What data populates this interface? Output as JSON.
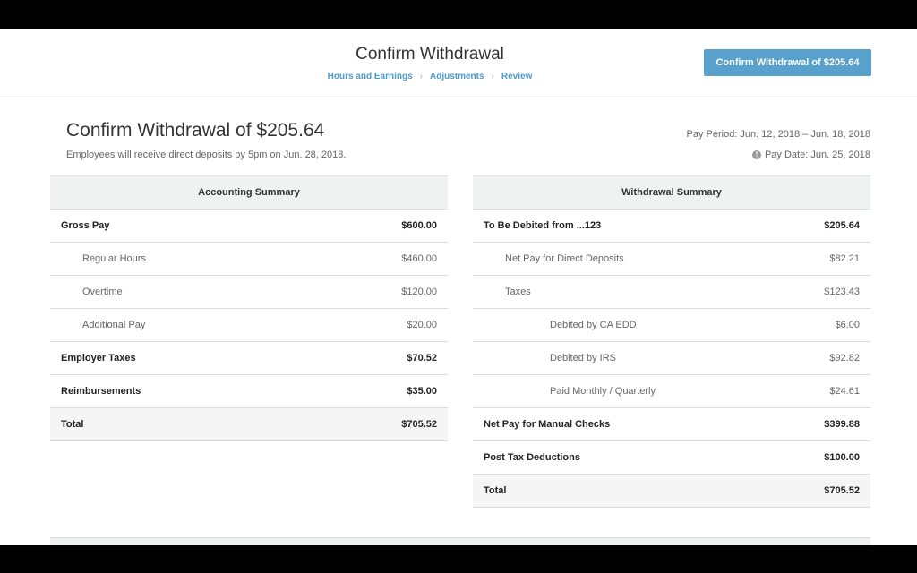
{
  "header": {
    "title": "Confirm Withdrawal",
    "breadcrumbs": [
      "Hours and Earnings",
      "Adjustments",
      "Review"
    ],
    "confirm_button": "Confirm Withdrawal of $205.64"
  },
  "main": {
    "title": "Confirm Withdrawal of $205.64",
    "subtitle": "Employees will receive direct deposits by 5pm on Jun. 28, 2018.",
    "pay_period": "Pay Period: Jun. 12, 2018 – Jun. 18, 2018",
    "pay_date": "Pay Date: Jun. 25, 2018"
  },
  "accounting": {
    "title": "Accounting Summary",
    "rows": [
      {
        "label": "Gross Pay",
        "value": "$600.00",
        "style": "b"
      },
      {
        "label": "Regular Hours",
        "value": "$460.00",
        "style": "i1"
      },
      {
        "label": "Overtime",
        "value": "$120.00",
        "style": "i1"
      },
      {
        "label": "Additional Pay",
        "value": "$20.00",
        "style": "i1"
      },
      {
        "label": "Employer Taxes",
        "value": "$70.52",
        "style": "b"
      },
      {
        "label": "Reimbursements",
        "value": "$35.00",
        "style": "b"
      },
      {
        "label": "Total",
        "value": "$705.52",
        "style": "b tot"
      }
    ]
  },
  "withdrawal": {
    "title": "Withdrawal Summary",
    "rows": [
      {
        "label": "To Be Debited from ...123",
        "value": "$205.64",
        "style": "b"
      },
      {
        "label": "Net Pay for Direct Deposits",
        "value": "$82.21",
        "style": "i1"
      },
      {
        "label": "Taxes",
        "value": "$123.43",
        "style": "i1"
      },
      {
        "label": "Debited by CA EDD",
        "value": "$6.00",
        "style": "i2"
      },
      {
        "label": "Debited by IRS",
        "value": "$92.82",
        "style": "i2"
      },
      {
        "label": "Paid Monthly / Quarterly",
        "value": "$24.61",
        "style": "i2"
      },
      {
        "label": "Net Pay for Manual Checks",
        "value": "$399.88",
        "style": "b"
      },
      {
        "label": "Post Tax Deductions",
        "value": "$100.00",
        "style": "b"
      },
      {
        "label": "Total",
        "value": "$705.52",
        "style": "b tot"
      }
    ]
  },
  "colors": {
    "accent": "#58a1cd",
    "link": "#4a9acb"
  }
}
